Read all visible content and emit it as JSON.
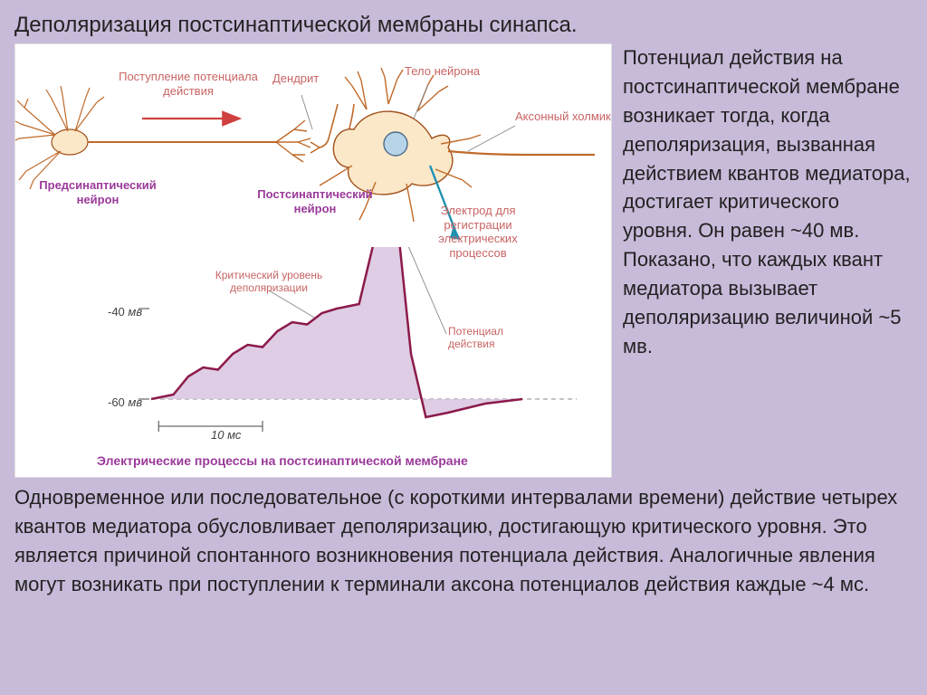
{
  "title": "Деполяризация постсинаптической мембраны синапса.",
  "right_paragraph": "Потенциал действия на постсинаптической мембране возникает тогда, когда деполяризация, вызванная действием квантов медиатора, достигает критического уровня. Он равен ~40 мв. Показано, что каждых квант медиатора вызывает деполяризацию величиной ~5 мв.",
  "bottom_paragraph": "Одновременное или последовательное (с короткими интервалами времени) действие четырех квантов медиатора обусловливает деполяризацию, достигающую критического уровня. Это является причиной спонтанного возникновения потенциала действия. Аналогичные явления могут возникать при поступлении к терминали аксона потенциалов действия каждые ~4 мс.",
  "diagram": {
    "background_color": "#ffffff",
    "page_background": "#c8bad9",
    "labels": {
      "ap_arrival": "Поступление потенциала\nдействия",
      "dendrite": "Дендрит",
      "cell_body": "Тело\nнейрона",
      "axon_hillock": "Аксонный\nхолмик",
      "presynaptic": "Предсинаптический\nнейрон",
      "postsynaptic": "Постсинаптический\nнейрон",
      "electrode": "Электрод для\nрегистрации\nэлектрических\nпроцессов",
      "critical_level": "Критический уровень\nдеполяризации",
      "action_potential": "Потенциал\nдействия",
      "caption": "Электрические процессы на постсинаптической мембране"
    },
    "colors": {
      "label_red": "#c86464",
      "label_purple": "#9a3a9a",
      "neuron_fill": "#fbe8c9",
      "neuron_stroke": "#c06a2a",
      "neuron_stroke_dark": "#a0501a",
      "nucleus_fill": "#b8d4e8",
      "curve_stroke": "#8c1a4a",
      "curve_fill": "#d8c4e0",
      "dashed_line": "#888888",
      "arrow_red": "#d04040",
      "electrode_color": "#2090b0"
    },
    "graph": {
      "type": "line",
      "y_axis": {
        "ticks": [
          -60,
          -40
        ],
        "tick_labels": [
          "-60 ",
          "-40 "
        ],
        "unit": "мв"
      },
      "x_axis": {
        "scale_bar_label": "10 мс"
      },
      "baseline_mv": -60,
      "critical_level_mv": -40,
      "points": [
        {
          "x": 0.0,
          "y": -60
        },
        {
          "x": 0.06,
          "y": -59
        },
        {
          "x": 0.1,
          "y": -55
        },
        {
          "x": 0.14,
          "y": -53
        },
        {
          "x": 0.18,
          "y": -53.5
        },
        {
          "x": 0.22,
          "y": -50
        },
        {
          "x": 0.26,
          "y": -48
        },
        {
          "x": 0.3,
          "y": -48.5
        },
        {
          "x": 0.34,
          "y": -45
        },
        {
          "x": 0.38,
          "y": -43
        },
        {
          "x": 0.42,
          "y": -43.5
        },
        {
          "x": 0.46,
          "y": -41
        },
        {
          "x": 0.5,
          "y": -40
        },
        {
          "x": 0.56,
          "y": -39
        },
        {
          "x": 0.62,
          "y": 30
        },
        {
          "x": 0.66,
          "y": 30
        },
        {
          "x": 0.7,
          "y": -50
        },
        {
          "x": 0.74,
          "y": -64
        },
        {
          "x": 0.8,
          "y": -63
        },
        {
          "x": 0.9,
          "y": -61
        },
        {
          "x": 1.0,
          "y": -60
        }
      ],
      "line_width": 2.5,
      "fill_opacity": 0.85
    }
  }
}
